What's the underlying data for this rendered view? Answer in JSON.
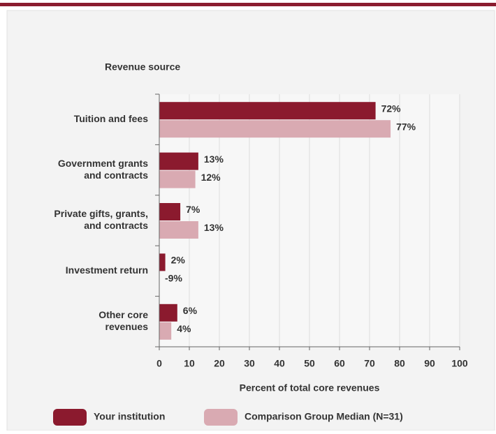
{
  "chart_data": {
    "type": "bar",
    "orientation": "horizontal",
    "ylabel": "Revenue source",
    "xlabel": "Percent of total core revenues",
    "categories": [
      [
        "Tuition and fees"
      ],
      [
        "Government grants",
        "and contracts"
      ],
      [
        "Private gifts, grants,",
        "and contracts"
      ],
      [
        "Investment return"
      ],
      [
        "Other core",
        "revenues"
      ]
    ],
    "series": [
      {
        "name": "Your institution",
        "color": "#8b1a2e",
        "values": [
          72,
          13,
          7,
          2,
          6
        ],
        "value_labels": [
          "72%",
          "13%",
          "7%",
          "2%",
          "6%"
        ]
      },
      {
        "name": "Comparison Group Median (N=31)",
        "color": "#d9aab2",
        "values": [
          77,
          12,
          13,
          -9,
          4
        ],
        "value_labels": [
          "77%",
          "12%",
          "13%",
          "-9%",
          "4%"
        ]
      }
    ],
    "xlim": [
      0,
      100
    ],
    "xticks": [
      0,
      10,
      20,
      30,
      40,
      50,
      60,
      70,
      80,
      90,
      100
    ],
    "grid": true
  }
}
